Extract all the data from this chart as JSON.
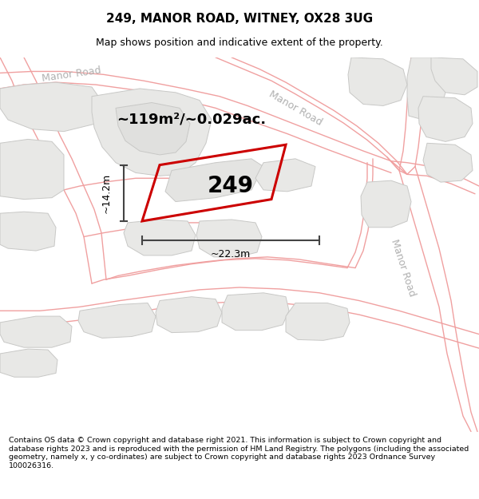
{
  "title": "249, MANOR ROAD, WITNEY, OX28 3UG",
  "subtitle": "Map shows position and indicative extent of the property.",
  "footer": "Contains OS data © Crown copyright and database right 2021. This information is subject to Crown copyright and database rights 2023 and is reproduced with the permission of HM Land Registry. The polygons (including the associated geometry, namely x, y co-ordinates) are subject to Crown copyright and database rights 2023 Ordnance Survey 100026316.",
  "bg_color": "#f8f8f6",
  "block_fill": "#e8e8e6",
  "block_edge": "#c8c8c6",
  "road_line_color": "#f0a0a0",
  "highlight_color": "#cc0000",
  "dim_color": "#444444",
  "street_label_color": "#b0b0b0",
  "area_text": "~119m²/~0.029ac.",
  "plot_label": "249",
  "dim_width": "~22.3m",
  "dim_height": "~14.2m",
  "title_fontsize": 11,
  "subtitle_fontsize": 9,
  "footer_fontsize": 6.8,
  "street_fontsize": 9,
  "area_fontsize": 13,
  "plot_fontsize": 20
}
